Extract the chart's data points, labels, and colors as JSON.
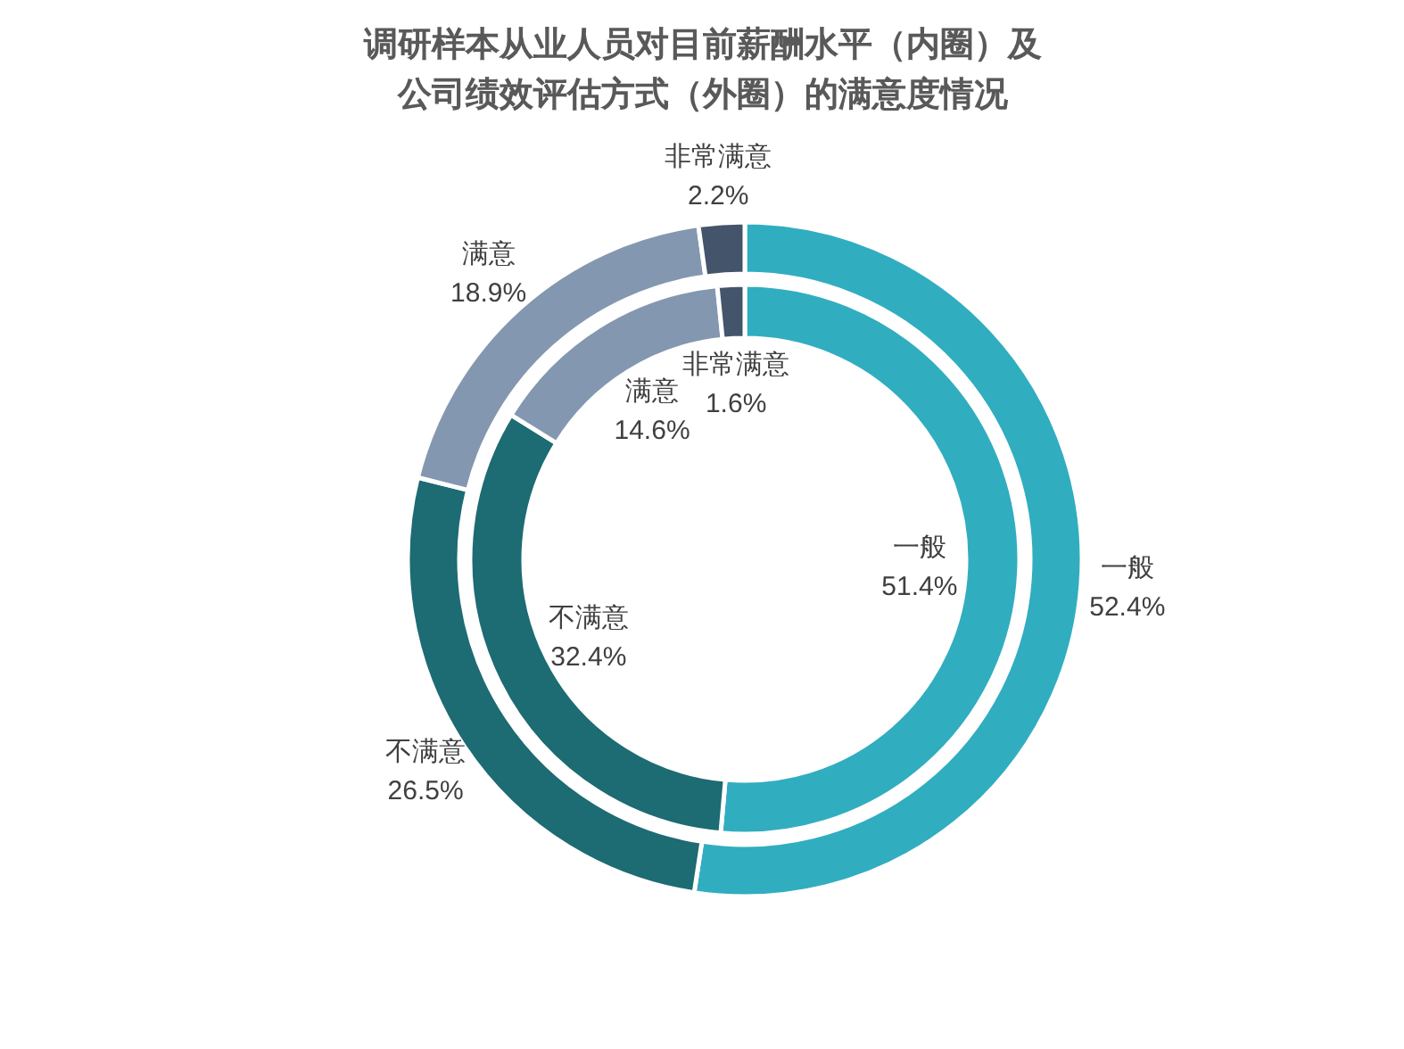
{
  "chart_data": {
    "type": "donut",
    "title": "调研样本从业人员对目前薪酬水平（内圈）及公司绩效评估方式（外圈）的满意度情况",
    "categories": [
      "一般",
      "不满意",
      "满意",
      "非常满意"
    ],
    "colors": [
      "#31adc0",
      "#1d6b73",
      "#8497b0",
      "#44546a"
    ],
    "series": [
      {
        "values": [
          51.4,
          32.4,
          14.6,
          1.6
        ],
        "value_labels": [
          "51.4%",
          "32.4%",
          "14.6%",
          "1.6%"
        ]
      },
      {
        "values": [
          52.4,
          26.5,
          18.9,
          2.2
        ],
        "value_labels": [
          "52.4%",
          "26.5%",
          "18.9%",
          "2.2%"
        ]
      }
    ]
  }
}
